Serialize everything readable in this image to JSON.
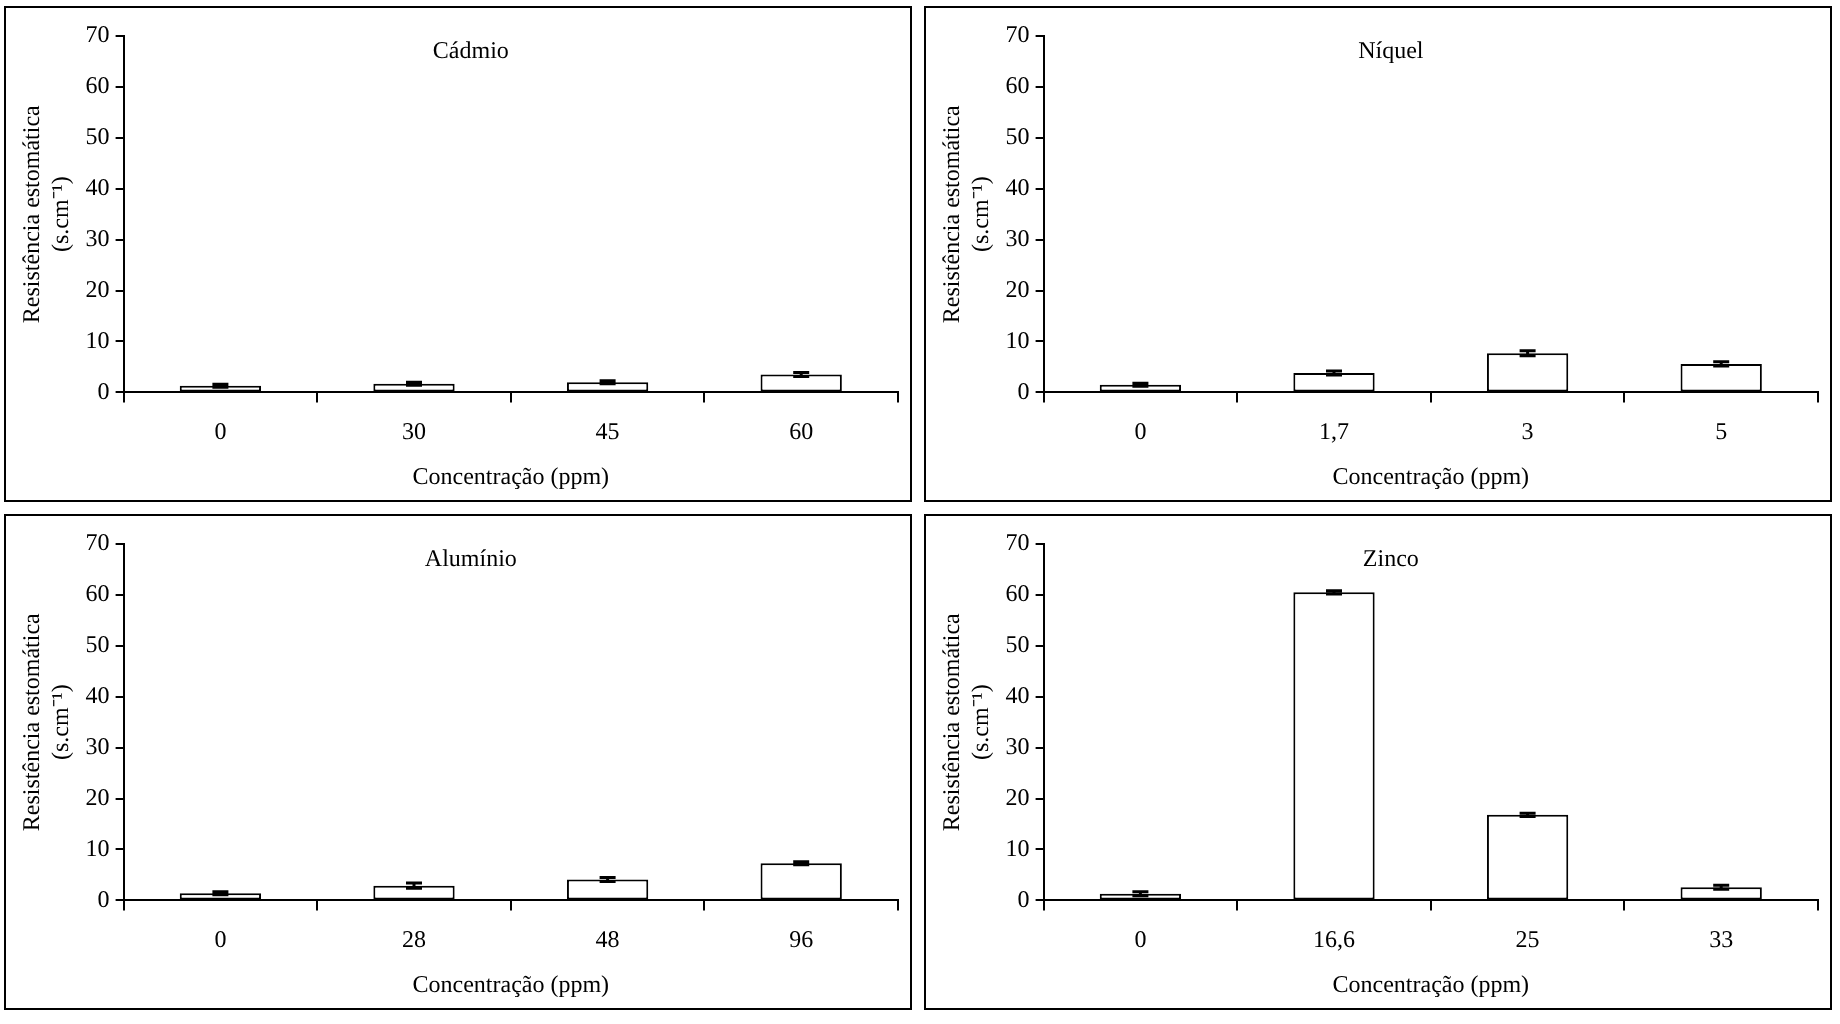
{
  "chart_data": [
    {
      "type": "bar",
      "title": "Cádmio",
      "xlabel": "Concentração (ppm)",
      "ylabel": "Resistência estomática (s.cm⁻¹)",
      "categories": [
        "0",
        "30",
        "45",
        "60"
      ],
      "values": [
        1.3,
        1.7,
        2.0,
        3.5
      ],
      "errors": [
        0.3,
        0.3,
        0.3,
        0.4
      ],
      "color": "#ffffff",
      "ylim": [
        0,
        70
      ],
      "yticks": [
        0,
        10,
        20,
        30,
        40,
        50,
        60,
        70
      ],
      "grid": false,
      "legend": false
    },
    {
      "type": "bar",
      "title": "Níquel",
      "xlabel": "Concentração (ppm)",
      "ylabel": "Resistência estomática (s.cm⁻¹)",
      "categories": [
        "0",
        "1,7",
        "3",
        "5"
      ],
      "values": [
        1.5,
        3.8,
        7.7,
        5.6
      ],
      "errors": [
        0.3,
        0.4,
        0.5,
        0.4
      ],
      "color": "#ffffff",
      "ylim": [
        0,
        70
      ],
      "yticks": [
        0,
        10,
        20,
        30,
        40,
        50,
        60,
        70
      ],
      "grid": false,
      "legend": false
    },
    {
      "type": "bar",
      "title": "Alumínio",
      "xlabel": "Concentração (ppm)",
      "ylabel": "Resistência estomática (s.cm⁻¹)",
      "categories": [
        "0",
        "28",
        "48",
        "96"
      ],
      "values": [
        1.4,
        2.9,
        4.1,
        7.3
      ],
      "errors": [
        0.3,
        0.5,
        0.4,
        0.3
      ],
      "color": "#ffffff",
      "ylim": [
        0,
        70
      ],
      "yticks": [
        0,
        10,
        20,
        30,
        40,
        50,
        60,
        70
      ],
      "grid": false,
      "legend": false
    },
    {
      "type": "bar",
      "title": "Zinco",
      "xlabel": "Concentração (ppm)",
      "ylabel": "Resistência estomática (s.cm⁻¹)",
      "categories": [
        "0",
        "16,6",
        "25",
        "33"
      ],
      "values": [
        1.3,
        60.5,
        16.8,
        2.6
      ],
      "errors": [
        0.4,
        0.3,
        0.3,
        0.4
      ],
      "color": "#ffffff",
      "ylim": [
        0,
        70
      ],
      "yticks": [
        0,
        10,
        20,
        30,
        40,
        50,
        60,
        70
      ],
      "grid": false,
      "legend": false
    }
  ]
}
